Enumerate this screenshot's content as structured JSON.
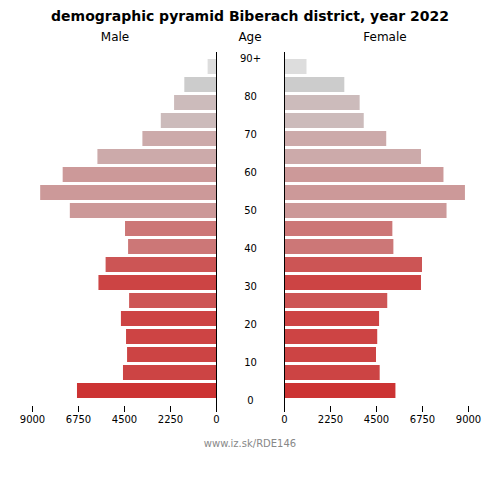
{
  "chart_data": {
    "type": "pyramid",
    "orientation": "horizontal",
    "title": "demographic pyramid Biberach district, year 2022",
    "ylabel": "Age",
    "caption": "www.iz.sk/RDE146",
    "categories": [
      "0",
      null,
      "10",
      null,
      "20",
      null,
      "30",
      null,
      "40",
      null,
      "50",
      null,
      "60",
      null,
      "70",
      null,
      "80",
      null,
      "90+"
    ],
    "series": [
      {
        "name": "Male",
        "values": [
          6800,
          4550,
          4350,
          4400,
          4650,
          4250,
          5750,
          5400,
          4300,
          4450,
          7150,
          8600,
          7500,
          5800,
          3600,
          2700,
          2050,
          1550,
          410
        ],
        "colors": [
          "#cc3333",
          "#cc4444",
          "#cc4444",
          "#cd4444",
          "#cd4444",
          "#cd5555",
          "#cc4444",
          "#cc5555",
          "#cc7777",
          "#cc7777",
          "#cc9999",
          "#cc9999",
          "#cc9999",
          "#ccaaaa",
          "#ccaaaa",
          "#ccbbbb",
          "#ccbbbb",
          "#cccccc",
          "#dddddd"
        ]
      },
      {
        "name": "Female",
        "values": [
          5450,
          4680,
          4500,
          4560,
          4650,
          5050,
          6700,
          6750,
          5350,
          5300,
          7950,
          8850,
          7800,
          6700,
          5000,
          3900,
          3700,
          2950,
          1100
        ],
        "colors": [
          "#cc3333",
          "#cc4444",
          "#cc4444",
          "#cd4444",
          "#cd4444",
          "#cd5555",
          "#cc4444",
          "#cc5555",
          "#cc7777",
          "#cc7777",
          "#cc9999",
          "#cc9999",
          "#cc9999",
          "#ccaaaa",
          "#ccaaaa",
          "#ccbbbb",
          "#ccbbbb",
          "#cccccc",
          "#dddddd"
        ]
      }
    ],
    "xlim": [
      0,
      9000
    ],
    "xticks": [
      0,
      2250,
      4500,
      6750,
      9000
    ]
  }
}
